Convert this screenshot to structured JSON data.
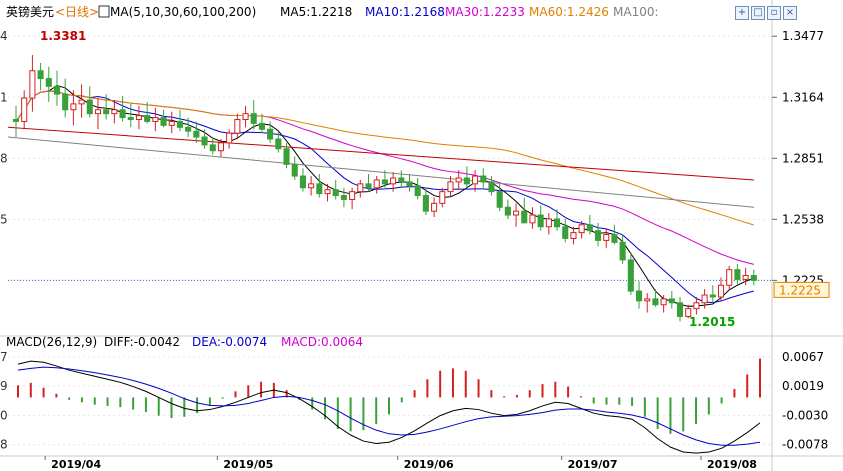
{
  "header": {
    "symbol": "英镑美元",
    "period": "<日线>",
    "ma_params": "MA(5,10,30,60,100,200)",
    "ma_values": [
      {
        "label": "MA5:1.2218",
        "color": "#000000"
      },
      {
        "label": "MA10:1.2168",
        "color": "#0000cc"
      },
      {
        "label": "MA30:1.2233",
        "color": "#d000d0"
      },
      {
        "label": "MA60:1.2426",
        "color": "#e08000"
      },
      {
        "label": "MA100:",
        "color": "#808080"
      }
    ]
  },
  "toolbar_icons": [
    "crosshair-icon",
    "maximize-icon",
    "restore-icon",
    "close-icon"
  ],
  "macd_header": {
    "params": "MACD(26,12,9)",
    "diff": "DIFF:-0.0042",
    "dea": "DEA:-0.0074",
    "macd": "MACD:0.0064",
    "colors": {
      "diff": "#000000",
      "dea": "#0000cc",
      "macd": "#d000d0"
    }
  },
  "price_axis": {
    "ticks": [
      1.3477,
      1.3164,
      1.2851,
      1.2538,
      1.2225
    ],
    "tick_labels": [
      "1.3477",
      "1.3164",
      "1.2851",
      "1.2538",
      "1.2225"
    ],
    "left_clipped_labels": [
      "4",
      "1",
      "8",
      "5"
    ],
    "current": 1.2225,
    "current_label": "1.2225"
  },
  "macd_axis": {
    "ticks": [
      0.0067,
      0.0019,
      -0.003,
      -0.0078
    ],
    "tick_labels": [
      "0.0067",
      "0.0019",
      "-0.0030",
      "-0.0078"
    ],
    "left_clipped_labels": [
      "7",
      "9",
      "0",
      "8"
    ]
  },
  "annotations": {
    "high": "1.3381",
    "low": "1.2015"
  },
  "chart_data": {
    "type": "candlestick",
    "instrument": "GBP/USD",
    "x_labels": [
      "2019/04",
      "2019/05",
      "2019/06",
      "2019/07",
      "2019/08"
    ],
    "price_range": [
      1.195,
      1.355
    ],
    "candles": [
      [
        1.305,
        1.312,
        1.296,
        1.304
      ],
      [
        1.304,
        1.32,
        1.3,
        1.316
      ],
      [
        1.316,
        1.3381,
        1.309,
        1.33
      ],
      [
        1.33,
        1.334,
        1.32,
        1.326
      ],
      [
        1.326,
        1.332,
        1.314,
        1.322
      ],
      [
        1.322,
        1.33,
        1.312,
        1.318
      ],
      [
        1.318,
        1.326,
        1.306,
        1.31
      ],
      [
        1.31,
        1.32,
        1.302,
        1.313
      ],
      [
        1.313,
        1.323,
        1.306,
        1.315
      ],
      [
        1.315,
        1.322,
        1.306,
        1.308
      ],
      [
        1.308,
        1.316,
        1.3,
        1.31
      ],
      [
        1.31,
        1.318,
        1.305,
        1.308
      ],
      [
        1.308,
        1.315,
        1.303,
        1.31
      ],
      [
        1.31,
        1.317,
        1.304,
        1.306
      ],
      [
        1.306,
        1.313,
        1.301,
        1.305
      ],
      [
        1.305,
        1.312,
        1.3,
        1.307
      ],
      [
        1.307,
        1.314,
        1.303,
        1.304
      ],
      [
        1.304,
        1.311,
        1.299,
        1.306
      ],
      [
        1.306,
        1.31,
        1.301,
        1.302
      ],
      [
        1.302,
        1.309,
        1.298,
        1.304
      ],
      [
        1.304,
        1.31,
        1.299,
        1.301
      ],
      [
        1.301,
        1.306,
        1.296,
        1.299
      ],
      [
        1.299,
        1.304,
        1.293,
        1.296
      ],
      [
        1.296,
        1.3,
        1.29,
        1.292
      ],
      [
        1.292,
        1.296,
        1.287,
        1.289
      ],
      [
        1.289,
        1.295,
        1.286,
        1.293
      ],
      [
        1.293,
        1.3,
        1.29,
        1.298
      ],
      [
        1.298,
        1.308,
        1.295,
        1.305
      ],
      [
        1.305,
        1.312,
        1.301,
        1.308
      ],
      [
        1.308,
        1.315,
        1.3,
        1.303
      ],
      [
        1.303,
        1.308,
        1.298,
        1.3
      ],
      [
        1.3,
        1.304,
        1.293,
        1.295
      ],
      [
        1.295,
        1.299,
        1.288,
        1.29
      ],
      [
        1.29,
        1.293,
        1.28,
        1.282
      ],
      [
        1.282,
        1.286,
        1.274,
        1.276
      ],
      [
        1.276,
        1.28,
        1.268,
        1.27
      ],
      [
        1.27,
        1.276,
        1.266,
        1.272
      ],
      [
        1.272,
        1.277,
        1.265,
        1.267
      ],
      [
        1.267,
        1.272,
        1.263,
        1.269
      ],
      [
        1.269,
        1.274,
        1.264,
        1.266
      ],
      [
        1.266,
        1.27,
        1.26,
        1.264
      ],
      [
        1.264,
        1.27,
        1.259,
        1.268
      ],
      [
        1.268,
        1.274,
        1.265,
        1.272
      ],
      [
        1.272,
        1.277,
        1.268,
        1.27
      ],
      [
        1.27,
        1.276,
        1.267,
        1.274
      ],
      [
        1.274,
        1.279,
        1.27,
        1.272
      ],
      [
        1.272,
        1.278,
        1.268,
        1.275
      ],
      [
        1.275,
        1.279,
        1.27,
        1.273
      ],
      [
        1.273,
        1.277,
        1.268,
        1.271
      ],
      [
        1.271,
        1.275,
        1.264,
        1.266
      ],
      [
        1.266,
        1.27,
        1.256,
        1.258
      ],
      [
        1.258,
        1.265,
        1.255,
        1.262
      ],
      [
        1.262,
        1.27,
        1.26,
        1.268
      ],
      [
        1.268,
        1.276,
        1.265,
        1.273
      ],
      [
        1.273,
        1.279,
        1.269,
        1.275
      ],
      [
        1.275,
        1.281,
        1.27,
        1.272
      ],
      [
        1.272,
        1.279,
        1.268,
        1.276
      ],
      [
        1.276,
        1.28,
        1.27,
        1.273
      ],
      [
        1.273,
        1.276,
        1.266,
        1.268
      ],
      [
        1.268,
        1.272,
        1.258,
        1.26
      ],
      [
        1.26,
        1.264,
        1.254,
        1.256
      ],
      [
        1.256,
        1.262,
        1.25,
        1.258
      ],
      [
        1.258,
        1.265,
        1.253,
        1.252
      ],
      [
        1.252,
        1.26,
        1.249,
        1.256
      ],
      [
        1.256,
        1.261,
        1.248,
        1.25
      ],
      [
        1.25,
        1.257,
        1.246,
        1.254
      ],
      [
        1.254,
        1.259,
        1.248,
        1.25
      ],
      [
        1.25,
        1.254,
        1.242,
        1.244
      ],
      [
        1.244,
        1.25,
        1.241,
        1.247
      ],
      [
        1.247,
        1.253,
        1.244,
        1.251
      ],
      [
        1.251,
        1.256,
        1.246,
        1.248
      ],
      [
        1.248,
        1.252,
        1.24,
        1.243
      ],
      [
        1.243,
        1.249,
        1.239,
        1.246
      ],
      [
        1.246,
        1.251,
        1.241,
        1.242
      ],
      [
        1.242,
        1.246,
        1.231,
        1.233
      ],
      [
        1.233,
        1.237,
        1.215,
        1.217
      ],
      [
        1.217,
        1.222,
        1.208,
        1.212
      ],
      [
        1.212,
        1.216,
        1.206,
        1.213
      ],
      [
        1.213,
        1.218,
        1.209,
        1.21
      ],
      [
        1.21,
        1.215,
        1.206,
        1.213
      ],
      [
        1.213,
        1.217,
        1.208,
        1.211
      ],
      [
        1.211,
        1.214,
        1.2015,
        1.204
      ],
      [
        1.204,
        1.21,
        1.203,
        1.208
      ],
      [
        1.208,
        1.214,
        1.205,
        1.211
      ],
      [
        1.211,
        1.218,
        1.208,
        1.215
      ],
      [
        1.215,
        1.22,
        1.211,
        1.214
      ],
      [
        1.214,
        1.224,
        1.212,
        1.22
      ],
      [
        1.22,
        1.23,
        1.218,
        1.228
      ],
      [
        1.228,
        1.231,
        1.22,
        1.223
      ],
      [
        1.223,
        1.229,
        1.22,
        1.225
      ],
      [
        1.225,
        1.228,
        1.22,
        1.2225
      ]
    ],
    "moving_averages": [
      {
        "name": "MA5",
        "color": "#000000"
      },
      {
        "name": "MA10",
        "color": "#0000cc"
      },
      {
        "name": "MA30",
        "color": "#d000d0"
      },
      {
        "name": "MA60",
        "color": "#e08000"
      },
      {
        "name": "MA100",
        "color": "#808080",
        "values": [
          1.296,
          1.26
        ],
        "span": "full"
      },
      {
        "name": "MA200",
        "color": "#c00000",
        "values": [
          1.301,
          1.274
        ],
        "span": "full"
      }
    ],
    "macd": {
      "range": [
        -0.0095,
        0.0075
      ],
      "diff_points": [
        0.0055,
        0.006,
        0.0058,
        0.0052,
        0.0045,
        0.004,
        0.0035,
        0.003,
        0.0025,
        0.0018,
        0.001,
        0.0,
        -0.001,
        -0.0018,
        -0.0022,
        -0.002,
        -0.0015,
        -0.0008,
        0.0,
        0.0008,
        0.0012,
        0.0008,
        -0.0002,
        -0.0015,
        -0.003,
        -0.0048,
        -0.0062,
        -0.0072,
        -0.0076,
        -0.0074,
        -0.0066,
        -0.0055,
        -0.0042,
        -0.003,
        -0.0022,
        -0.0018,
        -0.002,
        -0.0026,
        -0.003,
        -0.0028,
        -0.0022,
        -0.0014,
        -0.0008,
        -0.001,
        -0.0018,
        -0.0026,
        -0.003,
        -0.0032,
        -0.0036,
        -0.005,
        -0.0068,
        -0.0082,
        -0.009,
        -0.0092,
        -0.009,
        -0.0084,
        -0.0072,
        -0.0058,
        -0.0042
      ],
      "dea_points": [
        0.0045,
        0.0048,
        0.005,
        0.0049,
        0.0047,
        0.0044,
        0.0041,
        0.0037,
        0.0033,
        0.0028,
        0.0022,
        0.0015,
        0.0007,
        -0.0002,
        -0.0009,
        -0.0013,
        -0.0014,
        -0.0013,
        -0.001,
        -0.0005,
        0.0,
        0.0002,
        0.0,
        -0.0005,
        -0.0012,
        -0.0022,
        -0.0034,
        -0.0045,
        -0.0054,
        -0.006,
        -0.0062,
        -0.0061,
        -0.0057,
        -0.0052,
        -0.0046,
        -0.004,
        -0.0035,
        -0.0032,
        -0.0031,
        -0.003,
        -0.0028,
        -0.0025,
        -0.0021,
        -0.0019,
        -0.0019,
        -0.0021,
        -0.0024,
        -0.0026,
        -0.0029,
        -0.0034,
        -0.0042,
        -0.0052,
        -0.0062,
        -0.007,
        -0.0076,
        -0.0079,
        -0.0079,
        -0.0077,
        -0.0074
      ]
    }
  }
}
